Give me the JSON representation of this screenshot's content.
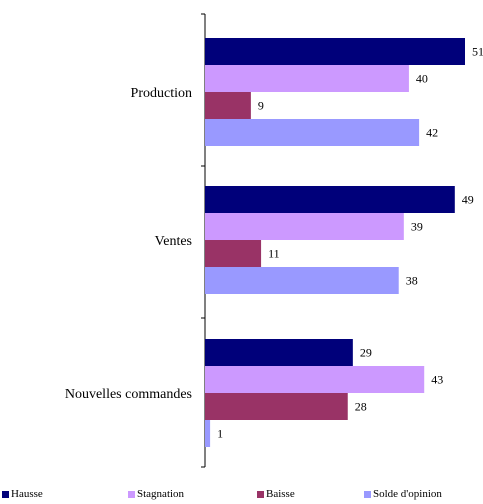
{
  "chart_data": {
    "type": "bar",
    "orientation": "horizontal",
    "categories": [
      "Production",
      "Ventes",
      "Nouvelles commandes"
    ],
    "series": [
      {
        "name": "Hausse",
        "values": [
          51,
          49,
          29
        ],
        "color": "#00007A"
      },
      {
        "name": "Stagnation",
        "values": [
          40,
          39,
          43
        ],
        "color": "#CC99FF"
      },
      {
        "name": "Baisse",
        "values": [
          9,
          11,
          28
        ],
        "color": "#993366"
      },
      {
        "name": "Solde d'opinion",
        "values": [
          42,
          38,
          1
        ],
        "color": "#9999FF"
      }
    ],
    "xlim": [
      0,
      51
    ],
    "grid": false,
    "legend_position": "bottom",
    "data_labels": true
  }
}
